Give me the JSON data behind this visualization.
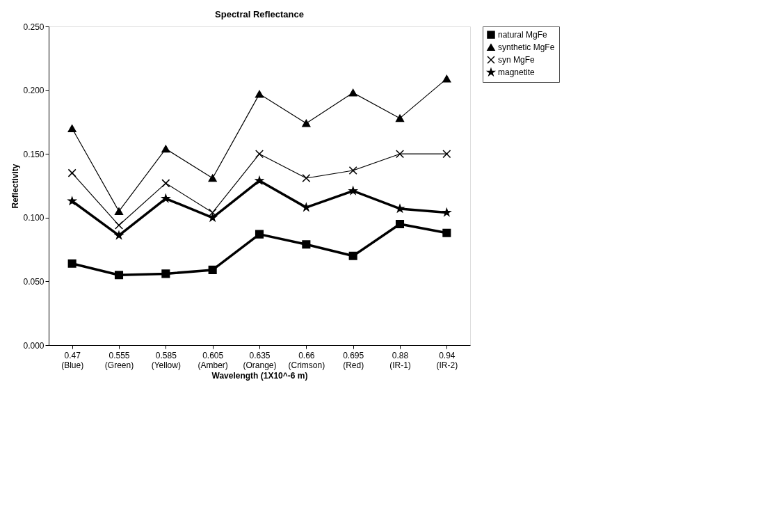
{
  "chart_data": {
    "type": "line",
    "title": "Spectral Reflectance",
    "xlabel": "Wavelength (1X10^-6 m)",
    "ylabel": "Reflectivity",
    "categories": [
      "0.47 (Blue)",
      "0.555 (Green)",
      "0.585 (Yellow)",
      "0.605 (Amber)",
      "0.635 (Orange)",
      "0.66 (Crimson)",
      "0.695 (Red)",
      "0.88 (IR-1)",
      "0.94 (IR-2)"
    ],
    "series": [
      {
        "name": "natural MgFe",
        "color": "#000000",
        "marker": "square",
        "values": [
          0.064,
          0.055,
          0.056,
          0.059,
          0.087,
          0.079,
          0.07,
          0.095,
          0.088
        ]
      },
      {
        "name": "synthetic MgFe",
        "color": "#000000",
        "marker": "triangle",
        "values": [
          0.17,
          0.105,
          0.154,
          0.131,
          0.197,
          0.174,
          0.198,
          0.178,
          0.209
        ]
      },
      {
        "name": "syn MgFe",
        "color": "#000000",
        "marker": "cross",
        "values": [
          0.135,
          0.094,
          0.127,
          0.104,
          0.15,
          0.131,
          0.137,
          0.15,
          0.15
        ]
      },
      {
        "name": "magnetite",
        "color": "#000000",
        "marker": "star",
        "values": [
          0.113,
          0.086,
          0.115,
          0.1,
          0.129,
          0.108,
          0.121,
          0.107,
          0.104
        ]
      }
    ],
    "ylim": [
      0,
      0.25
    ],
    "yticks": [
      {
        "value": 0,
        "label": "0.000"
      },
      {
        "value": 0.05,
        "label": "0.050"
      },
      {
        "value": 0.1,
        "label": "0.100"
      },
      {
        "value": 0.15,
        "label": "0.150"
      },
      {
        "value": 0.2,
        "label": "0.200"
      },
      {
        "value": 0.25,
        "label": "0.250"
      }
    ],
    "grid": false,
    "legend": "right",
    "line_style": "solid"
  }
}
